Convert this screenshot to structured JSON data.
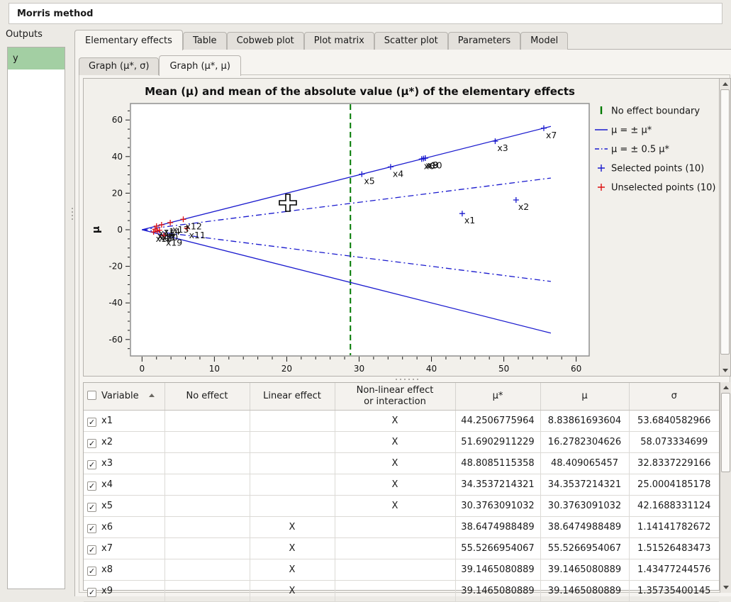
{
  "window_title": "Morris method",
  "outputs_panel": {
    "title": "Outputs",
    "items": [
      {
        "label": "y",
        "selected": true
      }
    ]
  },
  "tabs": [
    {
      "label": "Elementary effects",
      "active": true
    },
    {
      "label": "Table",
      "active": false
    },
    {
      "label": "Cobweb plot",
      "active": false
    },
    {
      "label": "Plot matrix",
      "active": false
    },
    {
      "label": "Scatter plot",
      "active": false
    },
    {
      "label": "Parameters",
      "active": false
    },
    {
      "label": "Model",
      "active": false
    }
  ],
  "subtabs": [
    {
      "label": "Graph (μ*, σ)",
      "active": false
    },
    {
      "label": "Graph (μ*, μ)",
      "active": true
    }
  ],
  "chart_data": {
    "type": "scatter",
    "title": "Mean (μ) and mean of the absolute value (μ*) of the elementary effects",
    "xlabel": "",
    "ylabel": "μ",
    "xlim": [
      -1.6,
      61.8
    ],
    "ylim": [
      -69,
      69
    ],
    "x_ticks": [
      0,
      10,
      20,
      30,
      40,
      50,
      60
    ],
    "y_ticks": [
      -60,
      -40,
      -20,
      0,
      20,
      40,
      60
    ],
    "grid": false,
    "legend_position": "right",
    "no_effect_boundary_x": 28.8,
    "colors": {
      "selected": "#1a1ace",
      "unselected": "#dd1111",
      "boundary": "#007a00"
    },
    "reference_lines": [
      {
        "name": "mu = +mu*",
        "style": "solid",
        "points": [
          [
            0,
            0
          ],
          [
            56.5,
            56.5
          ]
        ]
      },
      {
        "name": "mu = -mu*",
        "style": "solid",
        "points": [
          [
            0,
            0
          ],
          [
            56.5,
            -56.5
          ]
        ]
      },
      {
        "name": "mu = +0.5 mu*",
        "style": "dashdot",
        "points": [
          [
            0,
            0
          ],
          [
            56.5,
            28.25
          ]
        ]
      },
      {
        "name": "mu = -0.5 mu*",
        "style": "dashdot",
        "points": [
          [
            0,
            0
          ],
          [
            56.5,
            -28.25
          ]
        ]
      }
    ],
    "series": [
      {
        "name": "Selected points (10)",
        "marker": "plus",
        "color": "#1a1ace",
        "points": [
          {
            "label": "x1",
            "x": 44.2506775964,
            "y": 8.83861693604
          },
          {
            "label": "x2",
            "x": 51.6902911229,
            "y": 16.2782304626
          },
          {
            "label": "x3",
            "x": 48.8085115358,
            "y": 48.409065457
          },
          {
            "label": "x4",
            "x": 34.3537214321,
            "y": 34.3537214321
          },
          {
            "label": "x5",
            "x": 30.3763091032,
            "y": 30.3763091032
          },
          {
            "label": "x6",
            "x": 38.6474988489,
            "y": 38.6474988489
          },
          {
            "label": "x7",
            "x": 55.5266954067,
            "y": 55.5266954067
          },
          {
            "label": "x8",
            "x": 39.1465080889,
            "y": 39.1465080889
          },
          {
            "label": "x9",
            "x": 39.1465080889,
            "y": 39.1465080889
          },
          {
            "label": "x10",
            "x": 38.9,
            "y": 38.9
          }
        ]
      },
      {
        "name": "Unselected points (10)",
        "marker": "plus",
        "color": "#dd1111",
        "points": [
          {
            "label": "x11",
            "x": 6.2,
            "y": 0.8
          },
          {
            "label": "x12",
            "x": 5.7,
            "y": 5.7
          },
          {
            "label": "x13",
            "x": 3.9,
            "y": 3.9
          },
          {
            "label": "x14",
            "x": 2.7,
            "y": 2.7
          },
          {
            "label": "x15",
            "x": 2.0,
            "y": 2.0
          },
          {
            "label": "x16",
            "x": 1.8,
            "y": 0.3
          },
          {
            "label": "x17",
            "x": 2.1,
            "y": -0.6
          },
          {
            "label": "x18",
            "x": 1.6,
            "y": -1.2
          },
          {
            "label": "x19",
            "x": 3.0,
            "y": -3.2
          },
          {
            "label": "x20",
            "x": 2.4,
            "y": -0.3
          }
        ]
      }
    ],
    "legend": [
      {
        "label": "No effect boundary",
        "marker": "vbar",
        "color": "#007a00"
      },
      {
        "label": "μ = ± μ*",
        "marker": "line-solid",
        "color": "#1a1ace"
      },
      {
        "label": "μ = ± 0.5 μ*",
        "marker": "line-dashdot",
        "color": "#1a1ace"
      },
      {
        "label": "Selected points (10)",
        "marker": "plus",
        "color": "#1a1ace"
      },
      {
        "label": "Unselected points (10)",
        "marker": "plus",
        "color": "#dd1111"
      }
    ]
  },
  "table": {
    "headers": [
      "Variable",
      "No effect",
      "Linear effect",
      "Non-linear effect\nor interaction",
      "μ*",
      "μ",
      "σ"
    ],
    "header_checkbox_checked": false,
    "sort": {
      "column": "Variable",
      "direction": "asc"
    },
    "rows": [
      {
        "checked": true,
        "variable": "x1",
        "no_effect": "",
        "linear": "",
        "nonlinear": "X",
        "mu_star": "44.2506775964",
        "mu": "8.83861693604",
        "sigma": "53.6840582966"
      },
      {
        "checked": true,
        "variable": "x2",
        "no_effect": "",
        "linear": "",
        "nonlinear": "X",
        "mu_star": "51.6902911229",
        "mu": "16.2782304626",
        "sigma": "58.073334699"
      },
      {
        "checked": true,
        "variable": "x3",
        "no_effect": "",
        "linear": "",
        "nonlinear": "X",
        "mu_star": "48.8085115358",
        "mu": "48.409065457",
        "sigma": "32.8337229166"
      },
      {
        "checked": true,
        "variable": "x4",
        "no_effect": "",
        "linear": "",
        "nonlinear": "X",
        "mu_star": "34.3537214321",
        "mu": "34.3537214321",
        "sigma": "25.0004185178"
      },
      {
        "checked": true,
        "variable": "x5",
        "no_effect": "",
        "linear": "",
        "nonlinear": "X",
        "mu_star": "30.3763091032",
        "mu": "30.3763091032",
        "sigma": "42.1688331124"
      },
      {
        "checked": true,
        "variable": "x6",
        "no_effect": "",
        "linear": "X",
        "nonlinear": "",
        "mu_star": "38.6474988489",
        "mu": "38.6474988489",
        "sigma": "1.14141782672"
      },
      {
        "checked": true,
        "variable": "x7",
        "no_effect": "",
        "linear": "X",
        "nonlinear": "",
        "mu_star": "55.5266954067",
        "mu": "55.5266954067",
        "sigma": "1.51526483473"
      },
      {
        "checked": true,
        "variable": "x8",
        "no_effect": "",
        "linear": "X",
        "nonlinear": "",
        "mu_star": "39.1465080889",
        "mu": "39.1465080889",
        "sigma": "1.43477244576"
      },
      {
        "checked": true,
        "variable": "x9",
        "no_effect": "",
        "linear": "X",
        "nonlinear": "",
        "mu_star": "39.1465080889",
        "mu": "39.1465080889",
        "sigma": "1.35735400145"
      }
    ]
  }
}
